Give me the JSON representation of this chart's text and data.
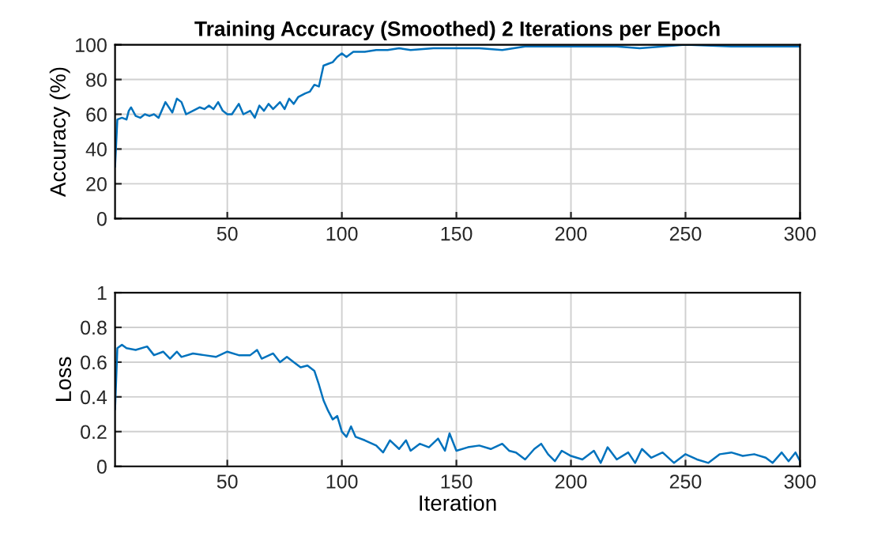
{
  "chart_data": [
    {
      "type": "line",
      "title": "Training Accuracy (Smoothed) 2 Iterations per Epoch",
      "ylabel": "Accuracy (%)",
      "grid": true,
      "xlim": [
        1,
        300
      ],
      "xticks": [
        50,
        100,
        150,
        200,
        250,
        300
      ],
      "ylim": [
        0,
        100
      ],
      "yticks": [
        0,
        20,
        40,
        60,
        80,
        100
      ],
      "series": [
        {
          "color": "#0072bd",
          "x": [
            1,
            2,
            4,
            6,
            7,
            8,
            10,
            12,
            14,
            16,
            18,
            20,
            23,
            26,
            28,
            30,
            32,
            35,
            38,
            40,
            42,
            44,
            46,
            48,
            50,
            52,
            55,
            57,
            60,
            62,
            64,
            66,
            68,
            70,
            73,
            75,
            77,
            79,
            81,
            84,
            86,
            88,
            90,
            92,
            94,
            96,
            98,
            100,
            102,
            105,
            110,
            115,
            120,
            125,
            130,
            140,
            150,
            160,
            170,
            180,
            190,
            200,
            220,
            230,
            250,
            270,
            290,
            300
          ],
          "values": [
            30,
            57,
            58,
            57,
            62,
            64,
            59,
            58,
            60,
            59,
            60,
            58,
            67,
            61,
            69,
            67,
            60,
            62,
            64,
            63,
            65,
            63,
            67,
            62,
            60,
            60,
            66,
            60,
            62,
            58,
            65,
            62,
            66,
            63,
            67,
            63,
            69,
            66,
            70,
            72,
            73,
            77,
            76,
            88,
            89,
            90,
            93,
            95,
            93,
            96,
            96,
            97,
            97,
            98,
            97,
            98,
            98,
            98,
            97,
            99,
            99,
            99,
            99,
            98,
            100,
            99,
            99,
            99
          ]
        }
      ]
    },
    {
      "type": "line",
      "xlabel": "Iteration",
      "ylabel": "Loss",
      "grid": true,
      "xlim": [
        1,
        300
      ],
      "xticks": [
        50,
        100,
        150,
        200,
        250,
        300
      ],
      "ylim": [
        0,
        1
      ],
      "yticks": [
        0,
        0.2,
        0.4,
        0.6,
        0.8,
        1
      ],
      "series": [
        {
          "color": "#0072bd",
          "x": [
            1,
            2,
            4,
            6,
            10,
            15,
            18,
            22,
            25,
            28,
            30,
            35,
            40,
            45,
            50,
            55,
            60,
            63,
            65,
            70,
            73,
            76,
            79,
            82,
            85,
            88,
            90,
            92,
            94,
            96,
            98,
            100,
            102,
            104,
            106,
            110,
            115,
            118,
            121,
            125,
            128,
            130,
            134,
            138,
            142,
            145,
            147,
            150,
            155,
            160,
            165,
            170,
            173,
            176,
            180,
            184,
            187,
            190,
            193,
            196,
            200,
            205,
            210,
            213,
            216,
            220,
            225,
            228,
            231,
            235,
            240,
            245,
            250,
            255,
            260,
            265,
            270,
            275,
            280,
            285,
            288,
            292,
            295,
            298,
            300
          ],
          "values": [
            0.33,
            0.68,
            0.7,
            0.68,
            0.67,
            0.69,
            0.64,
            0.66,
            0.62,
            0.66,
            0.63,
            0.65,
            0.64,
            0.63,
            0.66,
            0.64,
            0.64,
            0.67,
            0.62,
            0.65,
            0.6,
            0.63,
            0.6,
            0.57,
            0.58,
            0.55,
            0.47,
            0.38,
            0.32,
            0.27,
            0.29,
            0.2,
            0.17,
            0.23,
            0.17,
            0.15,
            0.12,
            0.08,
            0.15,
            0.1,
            0.15,
            0.09,
            0.13,
            0.11,
            0.16,
            0.09,
            0.19,
            0.09,
            0.11,
            0.12,
            0.1,
            0.13,
            0.09,
            0.08,
            0.04,
            0.1,
            0.13,
            0.07,
            0.03,
            0.09,
            0.06,
            0.04,
            0.09,
            0.02,
            0.11,
            0.04,
            0.08,
            0.02,
            0.1,
            0.05,
            0.08,
            0.02,
            0.07,
            0.04,
            0.02,
            0.07,
            0.08,
            0.06,
            0.07,
            0.05,
            0.02,
            0.08,
            0.03,
            0.08,
            0.03
          ]
        }
      ]
    }
  ]
}
